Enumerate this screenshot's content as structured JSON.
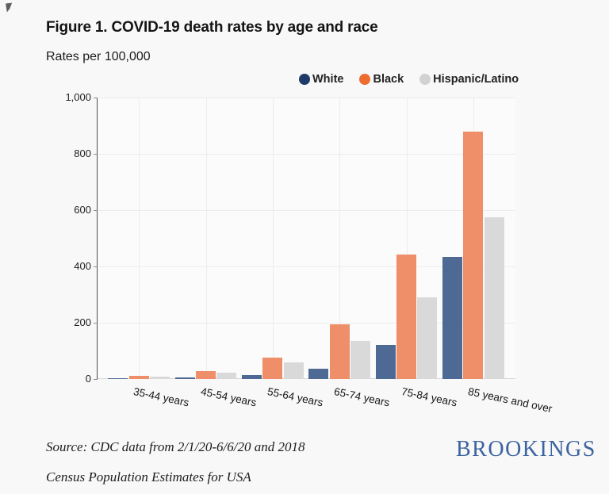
{
  "header": {
    "title": "Figure 1. COVID-19 death rates by age and race",
    "subtitle": "Rates per 100,000"
  },
  "legend": {
    "items": [
      {
        "label": "White",
        "marker_color": "#1f3a68"
      },
      {
        "label": "Black",
        "marker_color": "#ed6c2f"
      },
      {
        "label": "Hispanic/Latino",
        "marker_color": "#d2d2d2"
      }
    ]
  },
  "chart_data": {
    "type": "bar",
    "title": "Figure 1. COVID-19 death rates by age and race",
    "ylabel": "Rates per 100,000",
    "xlabel": "",
    "categories": [
      "35-44 years",
      "45-54 years",
      "55-64 years",
      "65-74 years",
      "75-84 years",
      "85 years and over"
    ],
    "series": [
      {
        "name": "White",
        "color": "#4e6a94",
        "values": [
          3,
          5,
          14,
          38,
          120,
          435
        ]
      },
      {
        "name": "Black",
        "color": "#ef8f6a",
        "values": [
          11,
          29,
          75,
          195,
          443,
          880
        ]
      },
      {
        "name": "Hispanic/Latino",
        "color": "#d9d9d9",
        "values": [
          8,
          23,
          60,
          134,
          290,
          575
        ]
      }
    ],
    "ylim": [
      0,
      1000
    ],
    "ytick_values": [
      0,
      200,
      400,
      600,
      800,
      1000
    ],
    "ytick_labels": [
      "0",
      "200",
      "400",
      "600",
      "800",
      "1,000"
    ],
    "grid": true,
    "legend_position": "top",
    "x_label_rotation_deg": 12
  },
  "footer": {
    "source_line1": "Source: CDC data from 2/1/20-6/6/20 and 2018",
    "source_line2": "Census Population Estimates for USA",
    "logo_text": "BROOKINGS"
  }
}
